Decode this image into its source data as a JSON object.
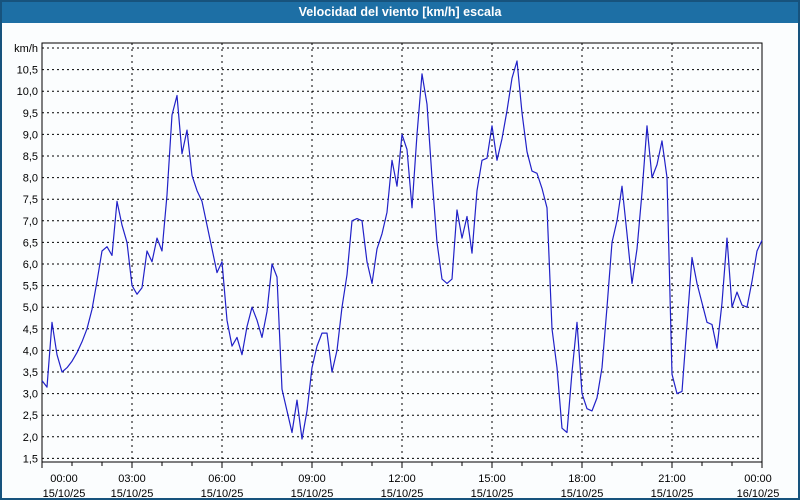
{
  "window": {
    "title": "Velocidad del viento [km/h] escala"
  },
  "colors": {
    "titlebar": "#1d6fa5",
    "titlebar_text": "#ffffff",
    "frame": "#17537d",
    "background": "#fbfdfe",
    "plot_border": "#000000",
    "grid": "#000000",
    "axis_text": "#000000",
    "line": "#2121c8"
  },
  "chart_data": {
    "type": "line",
    "title": "Velocidad del viento [km/h] escala",
    "ylabel": "km/h",
    "legend": "none",
    "grid": "dashed",
    "y_axis": {
      "min": 1.5,
      "max": 11.0,
      "step": 0.5,
      "unit_label": "km/h",
      "tick_labels": [
        "10,5",
        "10,0",
        "9,5",
        "9,0",
        "8,5",
        "8,0",
        "7,5",
        "7,0",
        "6,5",
        "6,0",
        "5,5",
        "5,0",
        "4,5",
        "4,0",
        "3,5",
        "3,0",
        "2,5",
        "2,0",
        "1,5"
      ]
    },
    "x_axis": {
      "span_hours": 24,
      "major_step_hours": 3,
      "minor_step_hours": 1,
      "tick_labels": [
        {
          "time": "00:00",
          "date": "15/10/25"
        },
        {
          "time": "03:00",
          "date": "15/10/25"
        },
        {
          "time": "06:00",
          "date": "15/10/25"
        },
        {
          "time": "09:00",
          "date": "15/10/25"
        },
        {
          "time": "12:00",
          "date": "15/10/25"
        },
        {
          "time": "15:00",
          "date": "15/10/25"
        },
        {
          "time": "18:00",
          "date": "15/10/25"
        },
        {
          "time": "21:00",
          "date": "15/10/25"
        },
        {
          "time": "00:00",
          "date": "16/10/25"
        }
      ]
    },
    "series": [
      {
        "name": "velocidad-del-viento",
        "interval_minutes": 10,
        "start_label": "00:00 15/10/25",
        "values": [
          3.3,
          3.15,
          4.65,
          3.9,
          3.5,
          3.6,
          3.75,
          3.95,
          4.2,
          4.5,
          4.95,
          5.6,
          6.3,
          6.4,
          6.2,
          7.45,
          6.9,
          6.5,
          5.5,
          5.3,
          5.45,
          6.3,
          6.05,
          6.6,
          6.3,
          7.6,
          9.45,
          9.9,
          8.55,
          9.1,
          8.05,
          7.7,
          7.45,
          6.9,
          6.35,
          5.8,
          6.05,
          4.7,
          4.1,
          4.3,
          3.9,
          4.55,
          5.0,
          4.7,
          4.3,
          4.9,
          6.0,
          5.7,
          3.1,
          2.6,
          2.1,
          2.85,
          1.95,
          2.6,
          3.6,
          4.1,
          4.4,
          4.4,
          3.5,
          4.0,
          5.0,
          5.75,
          7.0,
          7.05,
          7.0,
          6.05,
          5.55,
          6.35,
          6.7,
          7.2,
          8.4,
          7.8,
          9.0,
          8.65,
          7.3,
          9.0,
          10.4,
          9.7,
          8.0,
          6.5,
          5.65,
          5.55,
          5.65,
          7.25,
          6.6,
          7.1,
          6.25,
          7.7,
          8.4,
          8.45,
          9.2,
          8.4,
          8.9,
          9.55,
          10.3,
          10.7,
          9.5,
          8.6,
          8.15,
          8.1,
          7.75,
          7.3,
          4.5,
          3.6,
          2.2,
          2.1,
          3.5,
          4.65,
          3.0,
          2.65,
          2.6,
          2.9,
          3.6,
          5.0,
          6.5,
          7.0,
          7.8,
          6.7,
          5.55,
          6.35,
          7.65,
          9.2,
          8.0,
          8.3,
          8.85,
          8.0,
          3.45,
          3.0,
          3.05,
          4.6,
          6.15,
          5.55,
          5.1,
          4.65,
          4.6,
          4.05,
          5.1,
          6.6,
          5.0,
          5.35,
          5.05,
          5.0,
          5.6,
          6.3,
          6.55
        ]
      }
    ]
  }
}
